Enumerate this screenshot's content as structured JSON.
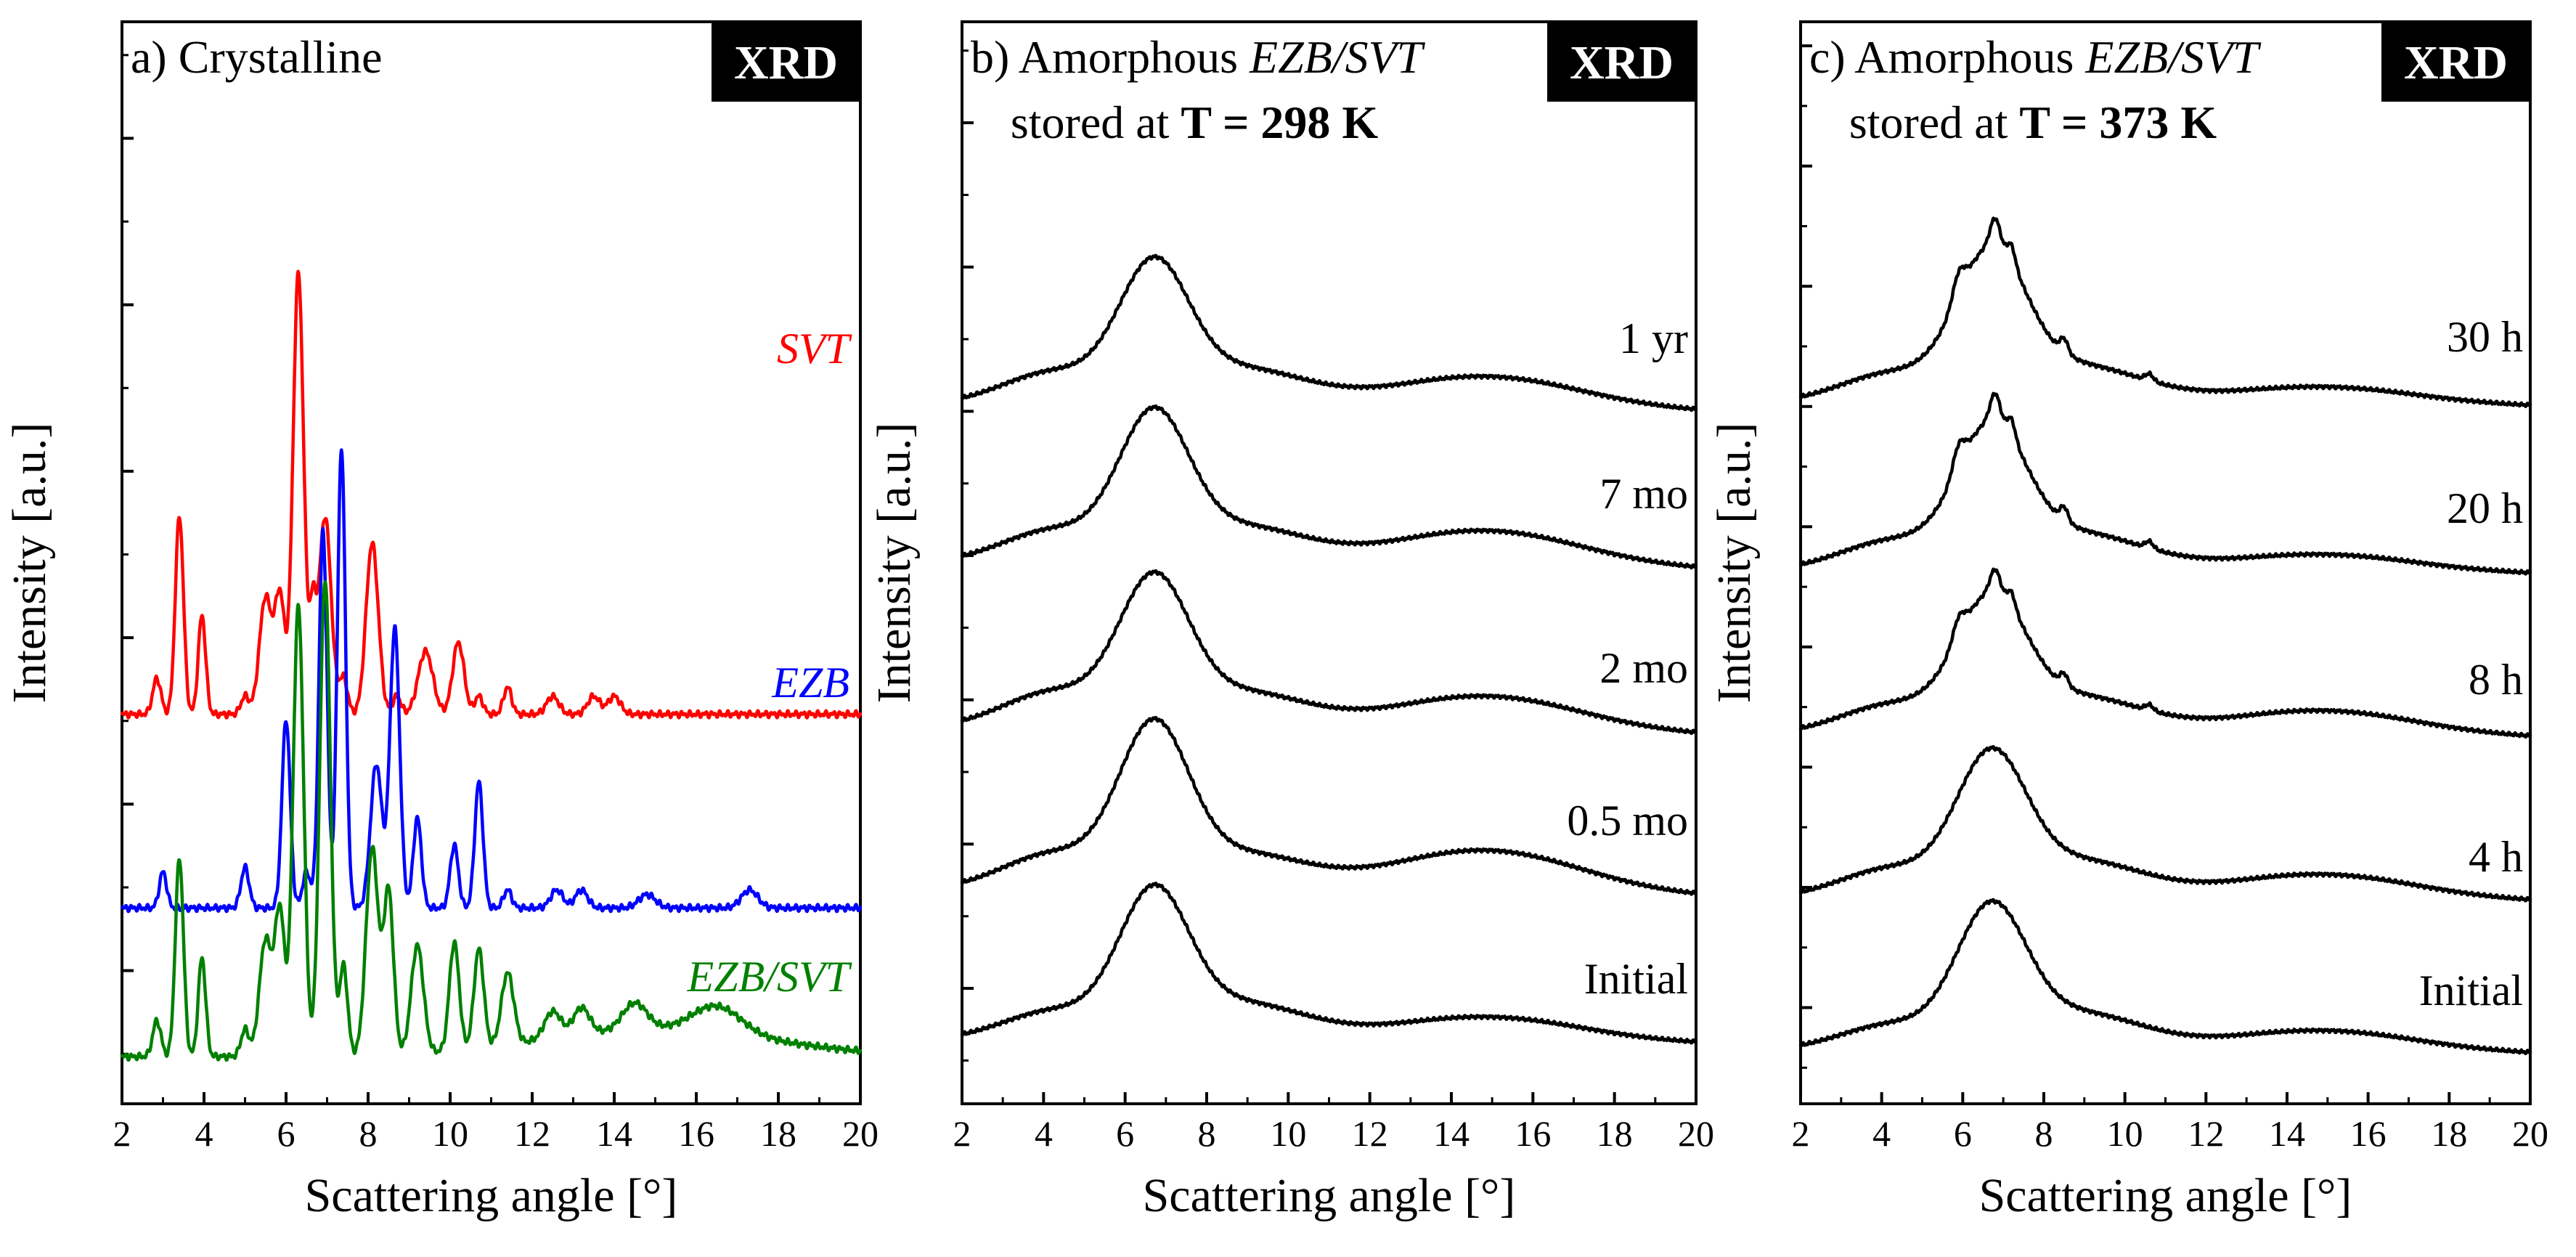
{
  "chart_data": [
    {
      "type": "line",
      "title_prefix": "a) Crystalline",
      "title_italic": "",
      "subtitle": "",
      "subtitle_bold": "",
      "badge": "XRD",
      "xlabel": "Scattering angle [°]",
      "ylabel": "Intensity [a.u.]",
      "xlim": [
        2,
        20
      ],
      "xticks": [
        "2",
        "4",
        "6",
        "8",
        "10",
        "12",
        "14",
        "16",
        "18",
        "20"
      ],
      "yscale": "stacked-offset",
      "series": [
        {
          "name": "SVT",
          "color": "#ff0000",
          "baseline": 0.38,
          "noise": 0.004,
          "tail": 0.0,
          "peaks": [
            [
              2.85,
              0.04,
              0.1
            ],
            [
              3.4,
              0.22,
              0.1
            ],
            [
              3.95,
              0.11,
              0.09
            ],
            [
              5.0,
              0.02,
              0.1
            ],
            [
              5.5,
              0.13,
              0.15
            ],
            [
              5.85,
              0.13,
              0.12
            ],
            [
              6.3,
              0.49,
              0.13
            ],
            [
              6.65,
              0.1,
              0.08
            ],
            [
              6.95,
              0.22,
              0.15
            ],
            [
              7.4,
              0.04,
              0.1
            ],
            [
              8.1,
              0.19,
              0.15
            ],
            [
              8.7,
              0.02,
              0.1
            ],
            [
              9.4,
              0.07,
              0.18
            ],
            [
              10.2,
              0.08,
              0.14
            ],
            [
              10.7,
              0.02,
              0.1
            ],
            [
              11.4,
              0.03,
              0.1
            ],
            [
              12.5,
              0.02,
              0.15
            ],
            [
              13.5,
              0.02,
              0.15
            ],
            [
              14.0,
              0.02,
              0.15
            ]
          ]
        },
        {
          "name": "EZB",
          "color": "#0000ff",
          "baseline": 0.165,
          "noise": 0.004,
          "tail": 0.0,
          "peaks": [
            [
              3.0,
              0.04,
              0.09
            ],
            [
              5.0,
              0.045,
              0.1
            ],
            [
              6.0,
              0.21,
              0.1
            ],
            [
              6.5,
              0.04,
              0.1
            ],
            [
              6.9,
              0.42,
              0.1
            ],
            [
              7.35,
              0.51,
              0.1
            ],
            [
              8.2,
              0.16,
              0.14
            ],
            [
              8.65,
              0.31,
              0.12
            ],
            [
              9.2,
              0.1,
              0.1
            ],
            [
              10.1,
              0.07,
              0.1
            ],
            [
              10.7,
              0.14,
              0.1
            ],
            [
              11.4,
              0.02,
              0.1
            ],
            [
              12.6,
              0.02,
              0.15
            ],
            [
              13.2,
              0.02,
              0.15
            ],
            [
              14.8,
              0.015,
              0.2
            ],
            [
              17.3,
              0.02,
              0.2
            ]
          ]
        },
        {
          "name": "EZB/SVT",
          "color": "#008000",
          "baseline": 0.0,
          "noise": 0.004,
          "tail": 0.03,
          "peaks": [
            [
              2.85,
              0.04,
              0.1
            ],
            [
              3.4,
              0.22,
              0.1
            ],
            [
              3.95,
              0.11,
              0.09
            ],
            [
              5.0,
              0.03,
              0.1
            ],
            [
              5.5,
              0.13,
              0.15
            ],
            [
              5.85,
              0.16,
              0.12
            ],
            [
              6.3,
              0.5,
              0.13
            ],
            [
              6.95,
              0.53,
              0.13
            ],
            [
              7.4,
              0.1,
              0.1
            ],
            [
              8.1,
              0.23,
              0.15
            ],
            [
              8.5,
              0.18,
              0.12
            ],
            [
              9.2,
              0.12,
              0.15
            ],
            [
              10.1,
              0.12,
              0.12
            ],
            [
              10.7,
              0.11,
              0.12
            ],
            [
              11.4,
              0.08,
              0.15
            ],
            [
              12.5,
              0.03,
              0.2
            ],
            [
              13.2,
              0.03,
              0.2
            ],
            [
              14.5,
              0.03,
              0.3
            ],
            [
              16.5,
              0.03,
              0.6
            ]
          ]
        }
      ]
    },
    {
      "type": "line",
      "title_prefix": "b) Amorphous",
      "title_italic": "EZB/SVT",
      "subtitle": "stored at",
      "subtitle_bold": "T = 298 K",
      "badge": "XRD",
      "xlabel": "Scattering angle [°]",
      "ylabel": "Intensity [a.u.]",
      "xlim": [
        2,
        20
      ],
      "xticks": [
        "2",
        "4",
        "6",
        "8",
        "10",
        "12",
        "14",
        "16",
        "18",
        "20"
      ],
      "yscale": "stacked-offset",
      "series": [
        {
          "name": "1 yr",
          "color": "#000000",
          "baseline": 0.84,
          "peak": 0.17,
          "shoulder": 0.045,
          "hump": 0.045,
          "drift": 0.01
        },
        {
          "name": "7 mo",
          "color": "#000000",
          "baseline": 0.63,
          "peak": 0.18,
          "shoulder": 0.045,
          "hump": 0.05,
          "drift": 0.01
        },
        {
          "name": "2 mo",
          "color": "#000000",
          "baseline": 0.41,
          "peak": 0.18,
          "shoulder": 0.05,
          "hump": 0.05,
          "drift": 0.01
        },
        {
          "name": "0.5 mo",
          "color": "#000000",
          "baseline": 0.195,
          "peak": 0.2,
          "shoulder": 0.05,
          "hump": 0.06,
          "drift": 0.01
        },
        {
          "name": "Initial",
          "color": "#000000",
          "baseline": 0.0,
          "peak": 0.18,
          "shoulder": 0.04,
          "hump": 0.035,
          "drift": 0.005
        }
      ]
    },
    {
      "type": "line",
      "title_prefix": "c) Amorphous",
      "title_italic": "EZB/SVT",
      "subtitle": "stored at",
      "subtitle_bold": "T = 373 K",
      "badge": "XRD",
      "xlabel": "Scattering angle [°]",
      "ylabel": "Intensity [a.u.]",
      "xlim": [
        2,
        20
      ],
      "xticks": [
        "2",
        "4",
        "6",
        "8",
        "10",
        "12",
        "14",
        "16",
        "18",
        "20"
      ],
      "yscale": "stacked-offset",
      "series": [
        {
          "name": "30 h",
          "color": "#000000",
          "baseline": 0.85,
          "peak": 0.18,
          "shoulder": 0.04,
          "hump": 0.025,
          "drift": 0.005,
          "fine": 0.03
        },
        {
          "name": "20 h",
          "color": "#000000",
          "baseline": 0.63,
          "peak": 0.17,
          "shoulder": 0.04,
          "hump": 0.025,
          "drift": 0.005,
          "fine": 0.03
        },
        {
          "name": "8 h",
          "color": "#000000",
          "baseline": 0.415,
          "peak": 0.16,
          "shoulder": 0.04,
          "hump": 0.035,
          "drift": 0.005,
          "fine": 0.025
        },
        {
          "name": "4 h",
          "color": "#000000",
          "baseline": 0.2,
          "peak": 0.17,
          "shoulder": 0.04,
          "hump": 0.035,
          "drift": 0.005,
          "fine": 0.0
        },
        {
          "name": "Initial",
          "color": "#000000",
          "baseline": 0.0,
          "peak": 0.17,
          "shoulder": 0.035,
          "hump": 0.03,
          "drift": 0.005,
          "fine": 0.0
        }
      ]
    }
  ]
}
